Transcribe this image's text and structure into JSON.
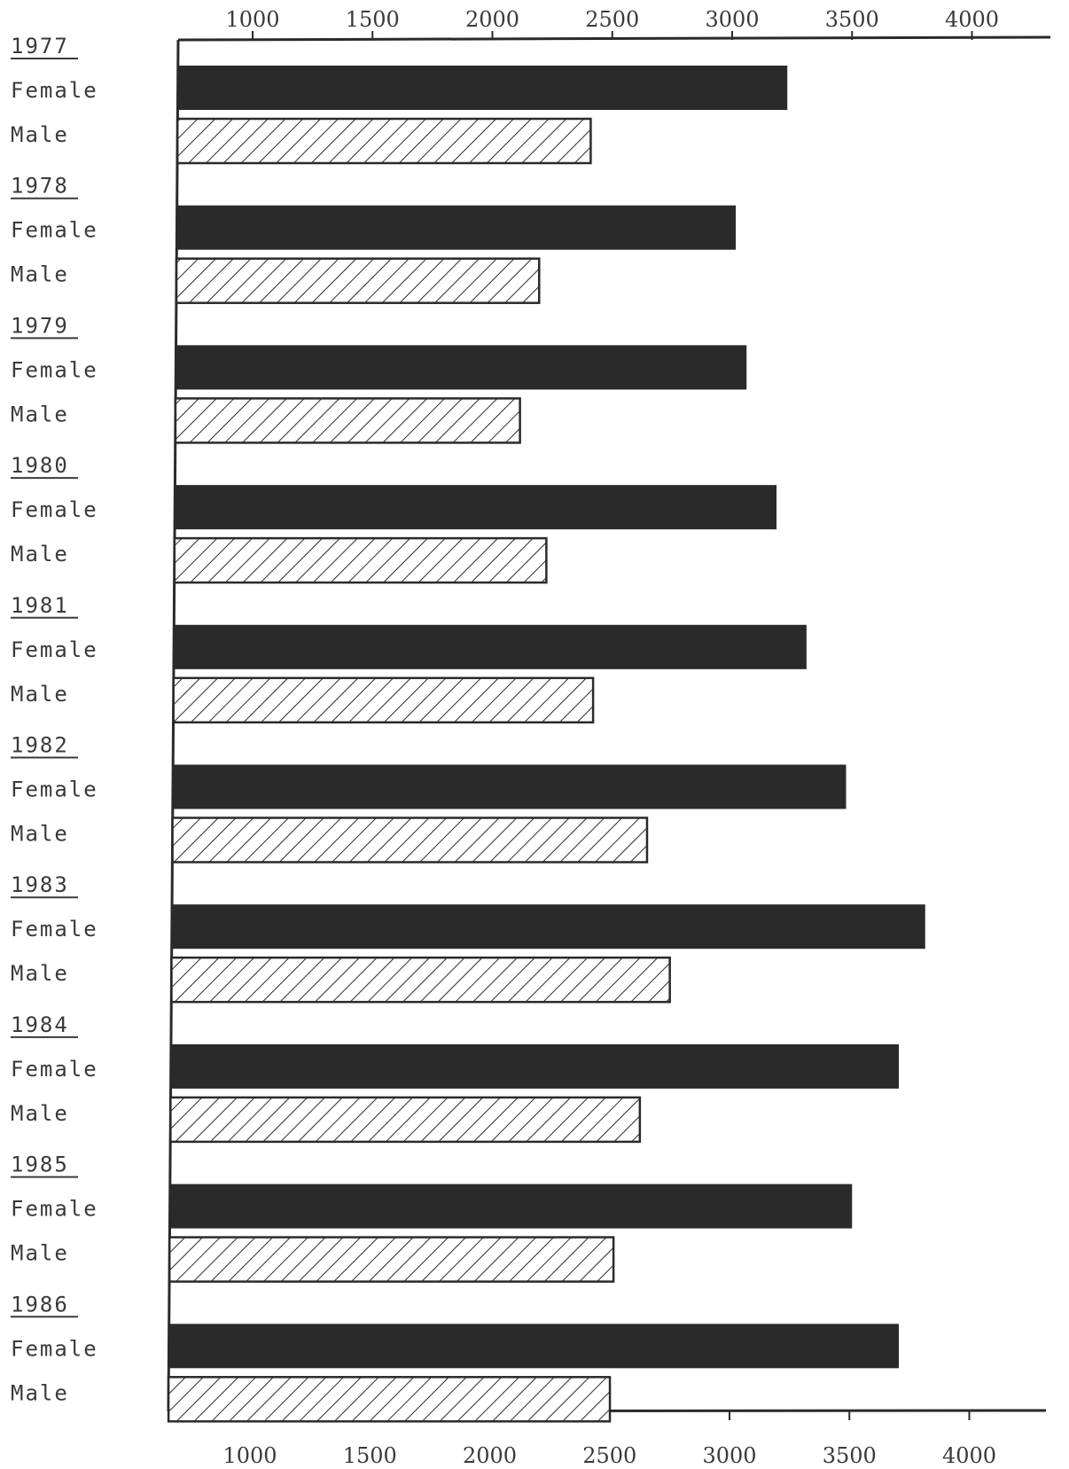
{
  "chart_data": {
    "type": "bar",
    "orientation": "horizontal",
    "categories": [
      "1977",
      "1978",
      "1979",
      "1980",
      "1981",
      "1982",
      "1983",
      "1984",
      "1985",
      "1986"
    ],
    "series": [
      {
        "name": "Female",
        "values": [
          3230,
          3015,
          3060,
          3185,
          3310,
          3475,
          3805,
          3695,
          3500,
          3695
        ],
        "style": "solid"
      },
      {
        "name": "Male",
        "values": [
          2410,
          2195,
          2115,
          2225,
          2420,
          2645,
          2740,
          2615,
          2505,
          2490
        ],
        "style": "hatched"
      }
    ],
    "xticks": [
      1000,
      1500,
      2000,
      2500,
      3000,
      3500,
      4000
    ],
    "xlim": [
      650,
      4100
    ],
    "tick_labels_top": true,
    "tick_labels_bottom": true,
    "grid": false,
    "colors": {
      "female": "#2a2a2a",
      "male_fill": "#ffffff",
      "male_hatch": "#2a2a2a",
      "axis": "#2a2a2a",
      "text": "#3a3a3a"
    }
  }
}
